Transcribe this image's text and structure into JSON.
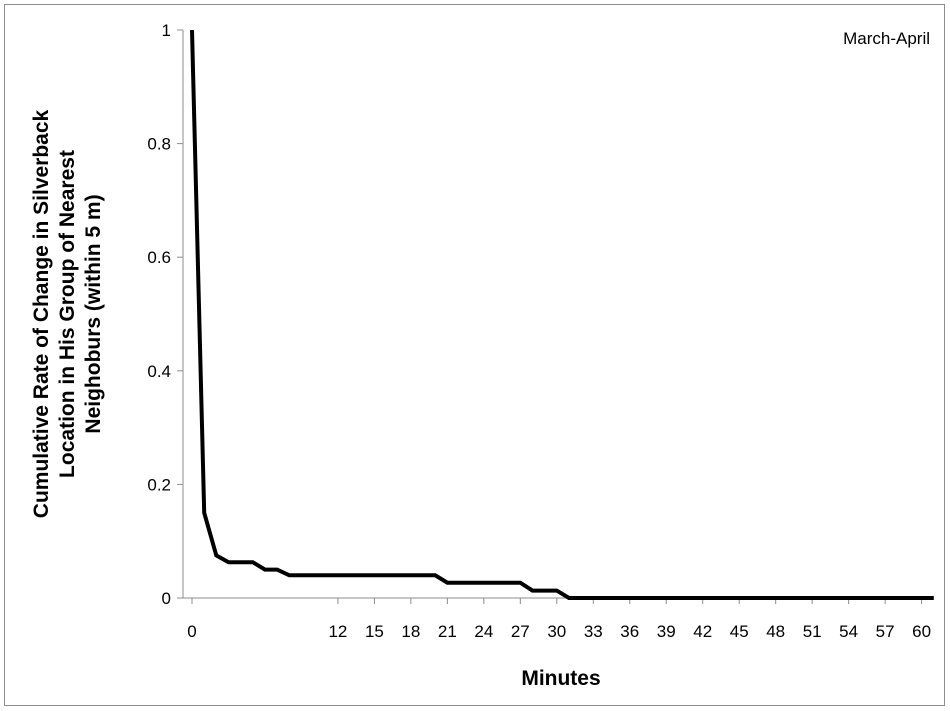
{
  "chart_data": {
    "type": "line",
    "annotation": "March-April",
    "xlabel": "Minutes",
    "ylabel_lines": [
      "Cumulative Rate of Change in Silverback",
      "Location in His Group of Nearest",
      "Neighoburs  (within 5 m)"
    ],
    "xlim": [
      0,
      61
    ],
    "ylim": [
      0,
      1
    ],
    "x_ticks": [
      0,
      12,
      15,
      18,
      21,
      24,
      27,
      30,
      33,
      36,
      39,
      42,
      45,
      48,
      51,
      54,
      57,
      60
    ],
    "y_ticks": [
      0,
      0.2,
      0.4,
      0.6,
      0.8,
      1
    ],
    "y_tick_labels": [
      "0",
      "0.2",
      "0.4",
      "0.6",
      "0.8",
      "1"
    ],
    "grid": false,
    "legend": "none",
    "series": [
      {
        "color": "#000000",
        "x": [
          0,
          1,
          2,
          3,
          4,
          5,
          6,
          7,
          8,
          9,
          10,
          11,
          12,
          13,
          14,
          15,
          16,
          17,
          18,
          19,
          20,
          21,
          22,
          23,
          24,
          25,
          26,
          27,
          28,
          29,
          30,
          31,
          32,
          33,
          34,
          35,
          36,
          37,
          38,
          39,
          40,
          41,
          42,
          43,
          44,
          45,
          46,
          47,
          48,
          49,
          50,
          51,
          52,
          53,
          54,
          55,
          56,
          57,
          58,
          59,
          60,
          61
        ],
        "y": [
          1.0,
          0.15,
          0.075,
          0.063,
          0.063,
          0.063,
          0.05,
          0.05,
          0.04,
          0.04,
          0.04,
          0.04,
          0.04,
          0.04,
          0.04,
          0.04,
          0.04,
          0.04,
          0.04,
          0.04,
          0.04,
          0.027,
          0.027,
          0.027,
          0.027,
          0.027,
          0.027,
          0.027,
          0.013,
          0.013,
          0.013,
          0.0,
          0.0,
          0.0,
          0.0,
          0.0,
          0.0,
          0.0,
          0.0,
          0.0,
          0.0,
          0.0,
          0.0,
          0.0,
          0.0,
          0.0,
          0.0,
          0.0,
          0.0,
          0.0,
          0.0,
          0.0,
          0.0,
          0.0,
          0.0,
          0.0,
          0.0,
          0.0,
          0.0,
          0.0,
          0.0,
          0.0
        ]
      }
    ]
  }
}
